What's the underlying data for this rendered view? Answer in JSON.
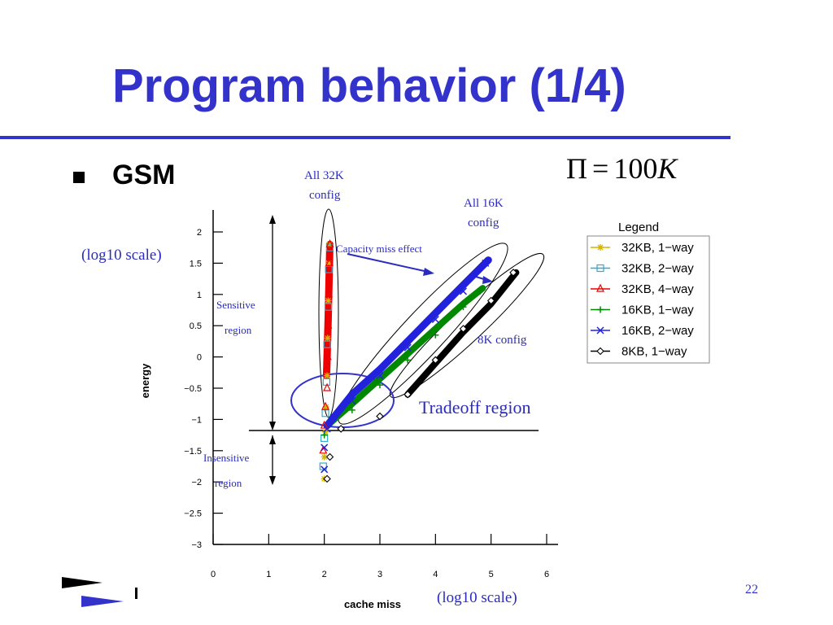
{
  "slide": {
    "title": "Program behavior (1/4)",
    "bullet": "GSM",
    "formula": {
      "lhs": "Π",
      "eq": "=",
      "num": "100",
      "var": "K"
    },
    "page_number": "22"
  },
  "annotations": {
    "all32k": "All 32K",
    "all32k_2": "config",
    "all16k": "All 16K",
    "all16k_2": "config",
    "capacity": "Capacity miss effect",
    "log_y": "(log10 scale)",
    "log_x": "(log10 scale)",
    "sensitive": "Sensitive",
    "sensitive_2": "region",
    "insensitive": "Insensitive",
    "insensitive_2": "region",
    "cfg8k": "8K config",
    "tradeoff": "Tradeoff region"
  },
  "chart_data": {
    "type": "scatter",
    "xlabel": "cache miss",
    "ylabel": "energy",
    "xlim": [
      0,
      6
    ],
    "ylim": [
      -3,
      2
    ],
    "xticks": [
      "0",
      "1",
      "2",
      "3",
      "4",
      "5",
      "6"
    ],
    "yticks": [
      "2",
      "1.5",
      "1",
      "0.5",
      "0",
      "−0.5",
      "−1",
      "−1.5",
      "−2",
      "−2.5",
      "−3"
    ],
    "legend_title": "Legend",
    "legend_position": "right",
    "series": [
      {
        "name": "32KB, 1−way",
        "color": "#d4b400",
        "marker": "star",
        "points": [
          [
            2.0,
            -1.95
          ],
          [
            2.0,
            -1.6
          ],
          [
            2.02,
            -1.2
          ],
          [
            2.03,
            -0.8
          ],
          [
            2.05,
            -0.3
          ],
          [
            2.06,
            0.3
          ],
          [
            2.07,
            0.9
          ],
          [
            2.08,
            1.5
          ],
          [
            2.09,
            1.8
          ]
        ]
      },
      {
        "name": "32KB, 2−way",
        "color": "#33aacc",
        "marker": "square",
        "points": [
          [
            1.98,
            -1.75
          ],
          [
            2.0,
            -1.3
          ],
          [
            2.02,
            -0.9
          ],
          [
            2.04,
            -0.4
          ],
          [
            2.05,
            0.2
          ],
          [
            2.07,
            0.8
          ],
          [
            2.08,
            1.4
          ],
          [
            2.1,
            1.75
          ]
        ]
      },
      {
        "name": "32KB, 4−way",
        "color": "#ee0000",
        "marker": "triangle",
        "points": [
          [
            1.98,
            -1.5
          ],
          [
            2.0,
            -1.1
          ],
          [
            2.02,
            -0.8
          ],
          [
            2.05,
            -0.5
          ],
          [
            2.06,
            0.0
          ],
          [
            2.07,
            0.5
          ],
          [
            2.08,
            1.0
          ],
          [
            2.09,
            1.5
          ],
          [
            2.1,
            1.8
          ]
        ]
      },
      {
        "name": "16KB, 1−way",
        "color": "#008800",
        "marker": "plus",
        "points": [
          [
            2.0,
            -1.25
          ],
          [
            2.5,
            -0.85
          ],
          [
            3.0,
            -0.45
          ],
          [
            3.5,
            -0.05
          ],
          [
            4.0,
            0.35
          ],
          [
            4.5,
            0.8
          ],
          [
            4.8,
            1.05
          ]
        ]
      },
      {
        "name": "16KB, 2−way",
        "color": "#2222dd",
        "marker": "cross",
        "points": [
          [
            2.0,
            -1.8
          ],
          [
            2.0,
            -1.45
          ],
          [
            2.05,
            -1.15
          ],
          [
            2.5,
            -0.7
          ],
          [
            3.0,
            -0.3
          ],
          [
            3.5,
            0.15
          ],
          [
            4.0,
            0.6
          ],
          [
            4.5,
            1.05
          ],
          [
            4.9,
            1.5
          ]
        ]
      },
      {
        "name": "8KB, 1−way",
        "color": "#000000",
        "marker": "diamond",
        "points": [
          [
            2.05,
            -1.95
          ],
          [
            2.1,
            -1.6
          ],
          [
            2.3,
            -1.15
          ],
          [
            3.0,
            -0.95
          ],
          [
            3.5,
            -0.6
          ],
          [
            4.0,
            -0.05
          ],
          [
            4.5,
            0.45
          ],
          [
            5.0,
            0.9
          ],
          [
            5.4,
            1.35
          ]
        ]
      }
    ]
  }
}
